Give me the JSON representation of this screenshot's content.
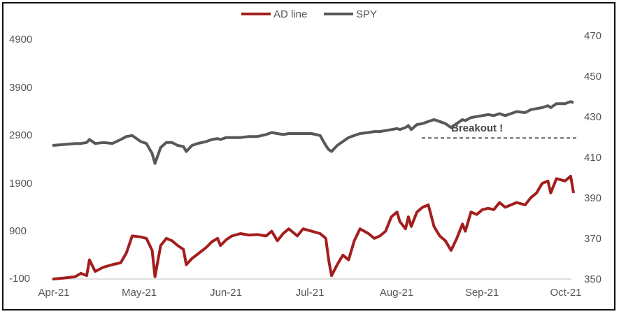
{
  "chart_data": {
    "type": "line",
    "title": "",
    "xlabel": "",
    "ylabel": "",
    "x_ticks": [
      "Apr-21",
      "May-21",
      "Jun-21",
      "Jul-21",
      "Aug-21",
      "Sep-21",
      "Oct-21"
    ],
    "left_axis": {
      "ticks": [
        "4900",
        "3900",
        "2900",
        "1900",
        "900",
        "-100"
      ],
      "ylim": [
        -100,
        4900
      ]
    },
    "right_axis": {
      "ticks": [
        "470",
        "450",
        "430",
        "410",
        "390",
        "370",
        "350"
      ],
      "ylim": [
        350,
        470
      ]
    },
    "legend": {
      "position": "top-center",
      "entries": [
        "AD line",
        "SPY"
      ]
    },
    "grid": false,
    "annotation": {
      "text": "Breakout !",
      "level": 2850,
      "axis": "left"
    },
    "x_range": [
      0,
      183
    ],
    "series": [
      {
        "name": "AD line",
        "axis": "left",
        "color": "#a31e1e",
        "points": [
          [
            0,
            -100
          ],
          [
            4,
            -80
          ],
          [
            8,
            -50
          ],
          [
            10,
            20
          ],
          [
            12,
            -30
          ],
          [
            13,
            300
          ],
          [
            15,
            60
          ],
          [
            18,
            150
          ],
          [
            21,
            200
          ],
          [
            24,
            240
          ],
          [
            26,
            450
          ],
          [
            28,
            800
          ],
          [
            31,
            780
          ],
          [
            33,
            750
          ],
          [
            35,
            500
          ],
          [
            36,
            -50
          ],
          [
            38,
            600
          ],
          [
            40,
            750
          ],
          [
            42,
            700
          ],
          [
            44,
            600
          ],
          [
            46,
            520
          ],
          [
            47,
            200
          ],
          [
            49,
            330
          ],
          [
            51,
            420
          ],
          [
            54,
            560
          ],
          [
            56,
            680
          ],
          [
            58,
            750
          ],
          [
            59,
            600
          ],
          [
            61,
            720
          ],
          [
            63,
            800
          ],
          [
            66,
            850
          ],
          [
            69,
            820
          ],
          [
            72,
            830
          ],
          [
            75,
            800
          ],
          [
            77,
            900
          ],
          [
            79,
            700
          ],
          [
            81,
            850
          ],
          [
            83,
            950
          ],
          [
            86,
            800
          ],
          [
            88,
            950
          ],
          [
            91,
            900
          ],
          [
            94,
            850
          ],
          [
            96,
            750
          ],
          [
            97,
            300
          ],
          [
            98,
            -30
          ],
          [
            100,
            200
          ],
          [
            102,
            400
          ],
          [
            104,
            300
          ],
          [
            106,
            700
          ],
          [
            108,
            950
          ],
          [
            111,
            850
          ],
          [
            113,
            750
          ],
          [
            115,
            800
          ],
          [
            117,
            900
          ],
          [
            119,
            1200
          ],
          [
            121,
            1300
          ],
          [
            122,
            1100
          ],
          [
            124,
            950
          ],
          [
            125,
            1200
          ],
          [
            126,
            1000
          ],
          [
            128,
            1300
          ],
          [
            130,
            1400
          ],
          [
            132,
            1450
          ],
          [
            134,
            1000
          ],
          [
            136,
            800
          ],
          [
            138,
            700
          ],
          [
            140,
            500
          ],
          [
            142,
            750
          ],
          [
            144,
            1050
          ],
          [
            145,
            900
          ],
          [
            147,
            1300
          ],
          [
            149,
            1250
          ],
          [
            151,
            1350
          ],
          [
            153,
            1380
          ],
          [
            155,
            1350
          ],
          [
            157,
            1500
          ],
          [
            159,
            1400
          ],
          [
            161,
            1450
          ],
          [
            163,
            1500
          ],
          [
            166,
            1450
          ],
          [
            168,
            1600
          ],
          [
            170,
            1700
          ],
          [
            172,
            1900
          ],
          [
            174,
            1950
          ],
          [
            175,
            1700
          ],
          [
            177,
            2000
          ],
          [
            180,
            1950
          ],
          [
            182,
            2050
          ],
          [
            183,
            1700
          ]
        ]
      },
      {
        "name": "SPY",
        "axis": "right",
        "color": "#585858",
        "points": [
          [
            0,
            417
          ],
          [
            4,
            417.5
          ],
          [
            8,
            418
          ],
          [
            10,
            418
          ],
          [
            12,
            418.5
          ],
          [
            13,
            420
          ],
          [
            15,
            418
          ],
          [
            18,
            418.5
          ],
          [
            21,
            418
          ],
          [
            24,
            420
          ],
          [
            26,
            421.5
          ],
          [
            28,
            422
          ],
          [
            31,
            419
          ],
          [
            33,
            418
          ],
          [
            35,
            413
          ],
          [
            36,
            408
          ],
          [
            38,
            416
          ],
          [
            40,
            418.5
          ],
          [
            42,
            418.5
          ],
          [
            44,
            417
          ],
          [
            46,
            416.5
          ],
          [
            47,
            414
          ],
          [
            49,
            417
          ],
          [
            51,
            418
          ],
          [
            54,
            419
          ],
          [
            56,
            420
          ],
          [
            58,
            420.5
          ],
          [
            59,
            420
          ],
          [
            61,
            421
          ],
          [
            63,
            421
          ],
          [
            66,
            421
          ],
          [
            69,
            421.5
          ],
          [
            72,
            421.5
          ],
          [
            75,
            422.5
          ],
          [
            77,
            423.5
          ],
          [
            79,
            423
          ],
          [
            81,
            422.5
          ],
          [
            83,
            423
          ],
          [
            86,
            423
          ],
          [
            88,
            423
          ],
          [
            91,
            423
          ],
          [
            94,
            422
          ],
          [
            96,
            417
          ],
          [
            97,
            415
          ],
          [
            98,
            414
          ],
          [
            100,
            417
          ],
          [
            102,
            419
          ],
          [
            104,
            421
          ],
          [
            106,
            422
          ],
          [
            108,
            423
          ],
          [
            111,
            423.5
          ],
          [
            113,
            424
          ],
          [
            115,
            424
          ],
          [
            117,
            424.5
          ],
          [
            119,
            425
          ],
          [
            121,
            425.5
          ],
          [
            122,
            425
          ],
          [
            124,
            426
          ],
          [
            125,
            427
          ],
          [
            126,
            425
          ],
          [
            128,
            427.5
          ],
          [
            130,
            428
          ],
          [
            132,
            429
          ],
          [
            134,
            430
          ],
          [
            136,
            429
          ],
          [
            138,
            428
          ],
          [
            140,
            426
          ],
          [
            142,
            428
          ],
          [
            144,
            430
          ],
          [
            145,
            429.5
          ],
          [
            147,
            431
          ],
          [
            149,
            431.5
          ],
          [
            151,
            432
          ],
          [
            153,
            432.5
          ],
          [
            155,
            432
          ],
          [
            157,
            433
          ],
          [
            159,
            432
          ],
          [
            161,
            433
          ],
          [
            163,
            434
          ],
          [
            166,
            433.5
          ],
          [
            168,
            435
          ],
          [
            170,
            435.5
          ],
          [
            172,
            436
          ],
          [
            174,
            437
          ],
          [
            175,
            436
          ],
          [
            177,
            438
          ],
          [
            180,
            438
          ],
          [
            182,
            439
          ],
          [
            183,
            438.5
          ]
        ]
      }
    ]
  }
}
